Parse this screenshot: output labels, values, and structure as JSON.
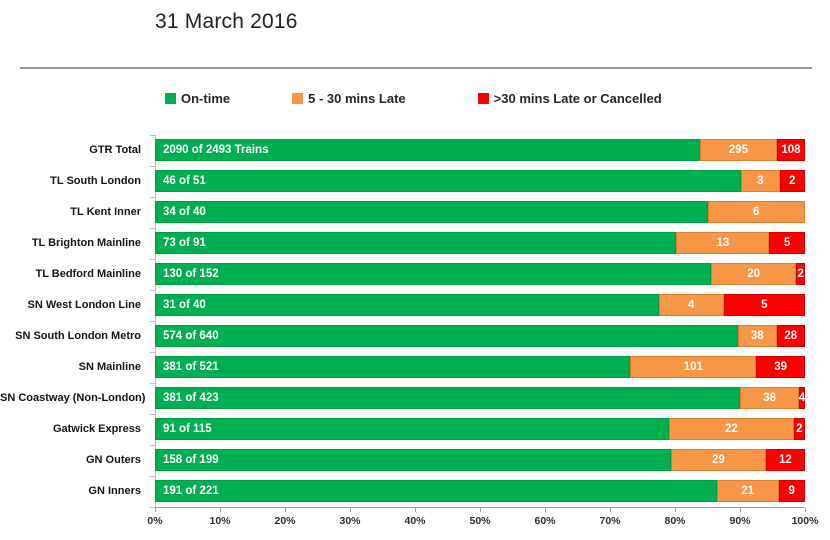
{
  "chart_data": {
    "type": "bar",
    "orientation": "horizontal",
    "stacked": true,
    "title": "31 March 2016",
    "grid": false,
    "legend_position": "top",
    "categories": [
      "GTR Total",
      "TL South London",
      "TL Kent Inner",
      "TL Brighton Mainline",
      "TL Bedford Mainline",
      "SN West London Line",
      "SN South London Metro",
      "SN Mainline",
      "SN Coastway (Non-London)",
      "Gatwick Express",
      "GN Outers",
      "GN Inners"
    ],
    "series": [
      {
        "name": "On-time",
        "color": "#00B050",
        "border_color": "#009B45",
        "values": [
          2090,
          46,
          34,
          73,
          130,
          31,
          574,
          381,
          381,
          91,
          158,
          191
        ]
      },
      {
        "name": "5 - 30 mins Late",
        "color": "#F79646",
        "border_color": "#DD7E2C",
        "values": [
          295,
          3,
          6,
          13,
          20,
          4,
          38,
          101,
          38,
          22,
          29,
          21
        ]
      },
      {
        "name": ">30 mins Late or Cancelled",
        "color": "#FF0000",
        "border_color": "#D40000",
        "values": [
          108,
          2,
          0,
          5,
          2,
          5,
          28,
          39,
          4,
          2,
          12,
          9
        ]
      }
    ],
    "totals": [
      2493,
      51,
      40,
      91,
      152,
      40,
      640,
      521,
      423,
      115,
      199,
      221
    ],
    "ontime_segment_labels": [
      "2090 of 2493 Trains",
      "46 of 51",
      "34 of 40",
      "73 of 91",
      "130 of 152",
      "31 of 40",
      "574 of 640",
      "381 of 521",
      "381 of 423",
      "91 of 115",
      "158 of 199",
      "191 of 221"
    ],
    "x_ticks": [
      "0%",
      "10%",
      "20%",
      "30%",
      "40%",
      "50%",
      "60%",
      "70%",
      "80%",
      "90%",
      "100%"
    ],
    "xlim": [
      "0%",
      "100%"
    ]
  }
}
